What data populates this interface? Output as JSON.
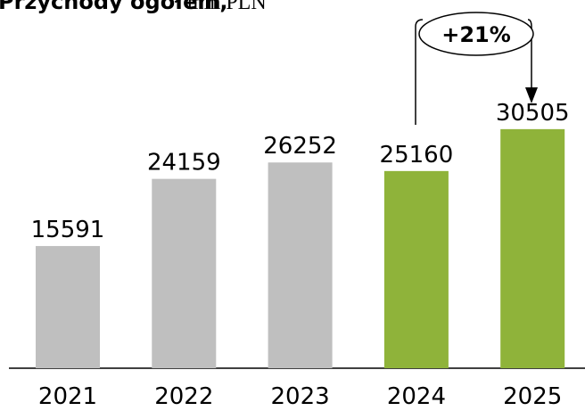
{
  "chart_data": {
    "type": "bar",
    "title": "Przychody ogółem,",
    "subtitle": "mln PLN",
    "annotation": "+21%",
    "categories": [
      "2021",
      "2022",
      "2023",
      "2024",
      "2025"
    ],
    "values": [
      15591,
      24159,
      26252,
      25160,
      30505
    ],
    "colors": [
      "#bfbfbf",
      "#bfbfbf",
      "#bfbfbf",
      "#8fb33a",
      "#8fb33a"
    ]
  }
}
